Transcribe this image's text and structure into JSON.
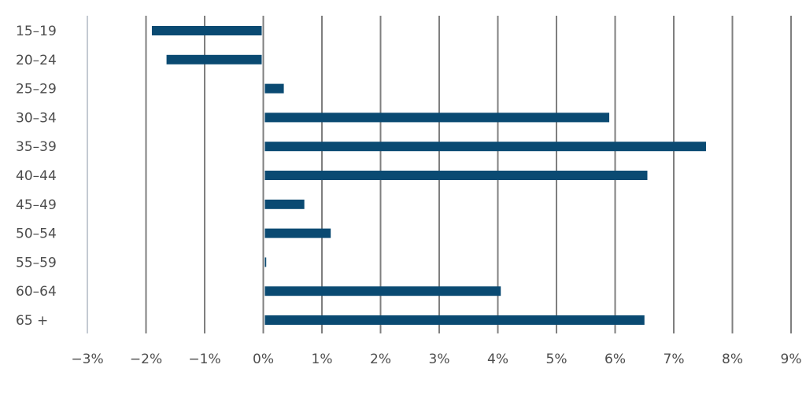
{
  "chart_data": {
    "type": "bar",
    "orientation": "horizontal",
    "categories": [
      "15–19",
      "20–24",
      "25–29",
      "30–34",
      "35–39",
      "40–44",
      "45–49",
      "50–54",
      "55–59",
      "60–64",
      "65 +"
    ],
    "values": [
      -1.9,
      -1.65,
      0.35,
      5.9,
      7.55,
      6.55,
      0.7,
      1.15,
      0.05,
      4.05,
      6.5
    ],
    "xlim": [
      -3,
      9
    ],
    "x_ticks": [
      -3,
      -2,
      -1,
      0,
      1,
      2,
      3,
      4,
      5,
      6,
      7,
      8,
      9
    ],
    "x_tick_labels": [
      "−3%",
      "−2%",
      "−1%",
      "0%",
      "1%",
      "2%",
      "3%",
      "4%",
      "5%",
      "6%",
      "7%",
      "8%",
      "9%"
    ],
    "grid": true,
    "title": "",
    "xlabel": "",
    "ylabel": "",
    "colors": {
      "bar": "#0a4a72",
      "grid": "#7f7f7f",
      "axis": "#b0b8c4",
      "text": "#4d4d4d"
    }
  }
}
